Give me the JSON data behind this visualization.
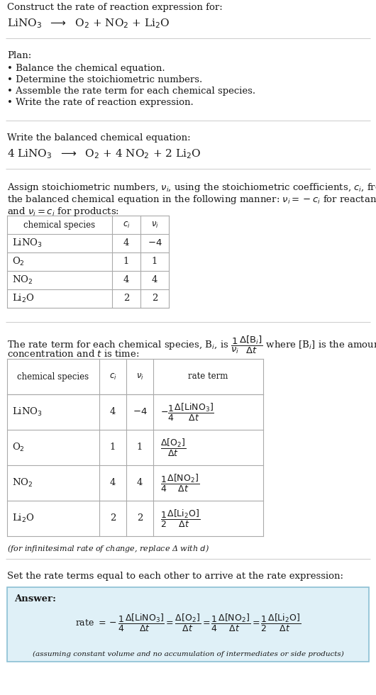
{
  "title_line1": "Construct the rate of reaction expression for:",
  "title_line2": "LiNO$_3$  $\\longrightarrow$  O$_2$ + NO$_2$ + Li$_2$O",
  "plan_header": "Plan:",
  "plan_items": [
    "\\textbullet  Balance the chemical equation.",
    "\\textbullet  Determine the stoichiometric numbers.",
    "\\textbullet  Assemble the rate term for each chemical species.",
    "\\textbullet  Write the rate of reaction expression."
  ],
  "plan_items_plain": [
    "• Balance the chemical equation.",
    "• Determine the stoichiometric numbers.",
    "• Assemble the rate term for each chemical species.",
    "• Write the rate of reaction expression."
  ],
  "balanced_header": "Write the balanced chemical equation:",
  "balanced_eq": "4 LiNO$_3$  $\\longrightarrow$  O$_2$ + 4 NO$_2$ + 2 Li$_2$O",
  "assign_text1": "Assign stoichiometric numbers, $\\nu_i$, using the stoichiometric coefficients, $c_i$, from",
  "assign_text2": "the balanced chemical equation in the following manner: $\\nu_i = -c_i$ for reactants",
  "assign_text3": "and $\\nu_i = c_i$ for products:",
  "table1_headers": [
    "chemical species",
    "$c_i$",
    "$\\nu_i$"
  ],
  "table1_data": [
    [
      "LiNO$_3$",
      "4",
      "$-4$"
    ],
    [
      "O$_2$",
      "1",
      "1"
    ],
    [
      "NO$_2$",
      "4",
      "4"
    ],
    [
      "Li$_2$O",
      "2",
      "2"
    ]
  ],
  "rate_text1": "The rate term for each chemical species, B$_i$, is $\\dfrac{1}{\\nu_i}\\dfrac{\\Delta[\\mathrm{B}_i]}{\\Delta t}$ where [B$_i$] is the amount",
  "rate_text2": "concentration and $t$ is time:",
  "table2_headers": [
    "chemical species",
    "$c_i$",
    "$\\nu_i$",
    "rate term"
  ],
  "table2_data_species": [
    "LiNO$_3$",
    "O$_2$",
    "NO$_2$",
    "Li$_2$O"
  ],
  "table2_data_ci": [
    "4",
    "1",
    "4",
    "2"
  ],
  "table2_data_vi": [
    "$-4$",
    "1",
    "4",
    "2"
  ],
  "table2_data_rate": [
    "$-\\dfrac{1}{4}\\dfrac{\\Delta[\\mathrm{LiNO_3}]}{\\Delta t}$",
    "$\\dfrac{\\Delta[\\mathrm{O_2}]}{\\Delta t}$",
    "$\\dfrac{1}{4}\\dfrac{\\Delta[\\mathrm{NO_2}]}{\\Delta t}$",
    "$\\dfrac{1}{2}\\dfrac{\\Delta[\\mathrm{Li_2O}]}{\\Delta t}$"
  ],
  "infinitesimal_note": "(for infinitesimal rate of change, replace Δ with $d$)",
  "set_rate_text": "Set the rate terms equal to each other to arrive at the rate expression:",
  "answer_label": "Answer:",
  "answer_box_color": "#dff0f7",
  "answer_box_border": "#8bbfd4",
  "rate_expression": "rate $= -\\dfrac{1}{4}\\dfrac{\\Delta[\\mathrm{LiNO_3}]}{\\Delta t} = \\dfrac{\\Delta[\\mathrm{O_2}]}{\\Delta t} = \\dfrac{1}{4}\\dfrac{\\Delta[\\mathrm{NO_2}]}{\\Delta t} = \\dfrac{1}{2}\\dfrac{\\Delta[\\mathrm{Li_2O}]}{\\Delta t}$",
  "assuming_note": "(assuming constant volume and no accumulation of intermediates or side products)",
  "bg_color": "#ffffff",
  "text_color": "#1a1a1a",
  "table_border_color": "#aaaaaa",
  "line_color": "#cccccc",
  "font_size": 9.5,
  "fig_width": 5.3,
  "fig_height": 9.8
}
